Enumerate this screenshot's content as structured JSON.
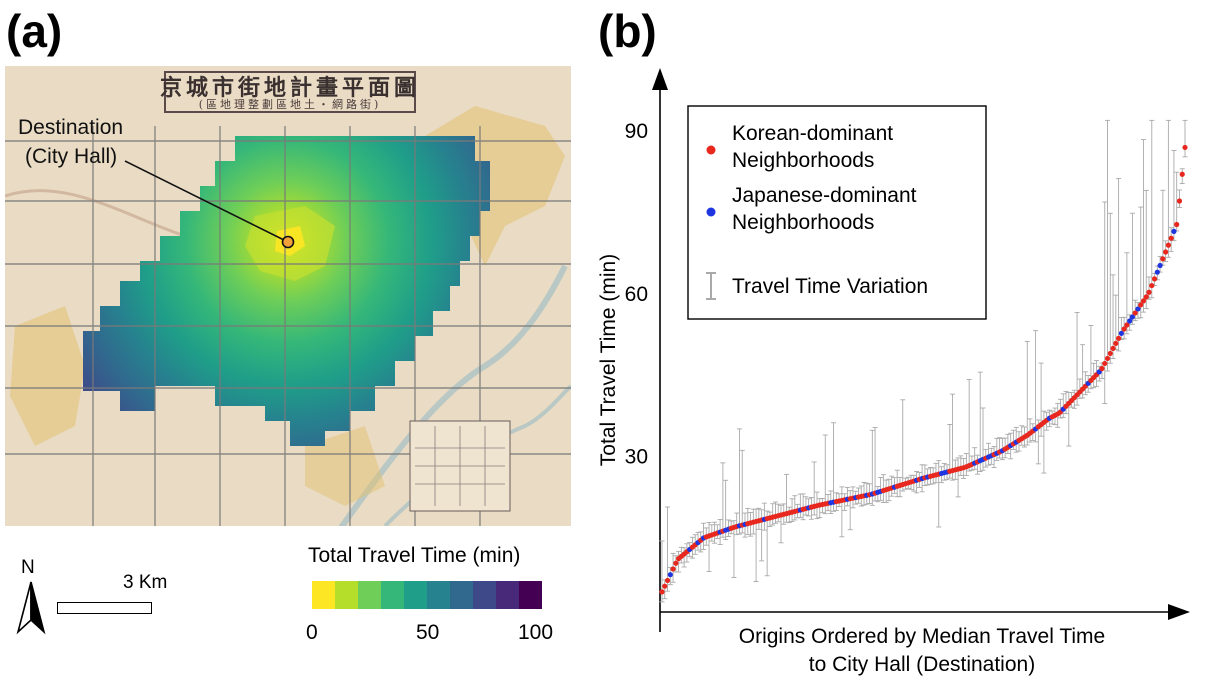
{
  "panel_a": {
    "label": "(a)",
    "map_title": "京城市街地計畫平面圖",
    "map_subtitle": "(區地理整劃區地土・網路街)",
    "destination_label_line1": "Destination",
    "destination_label_line2": "(City Hall)",
    "north_label": "N",
    "scale_label": "3 Km",
    "colorbar": {
      "title": "Total Travel Time (min)",
      "tick_min": "0",
      "tick_mid": "50",
      "tick_max": "100",
      "colors": [
        "#fde725",
        "#b5de2b",
        "#6ece58",
        "#35b779",
        "#1f9e89",
        "#26828e",
        "#31688e",
        "#3e4989",
        "#482878",
        "#440154"
      ]
    },
    "palette": {
      "paper": "#eadcc4",
      "heat_low": "#fde725",
      "heat_high": "#440154",
      "map_river": "#b9c8c4",
      "dest_marker": "#f2a03a"
    }
  },
  "panel_b": {
    "label": "(b)"
  },
  "chart_data": {
    "type": "scatter",
    "title": "",
    "xlabel_line1": "Origins Ordered by Median Travel Time",
    "xlabel_line2": "to City Hall (Destination)",
    "ylabel": "Total Travel Time (min)",
    "ylim": [
      0,
      98
    ],
    "yticks": [
      "30",
      "60",
      "90"
    ],
    "ytick_values": [
      30,
      60,
      90
    ],
    "x_ticks_shown": false,
    "legend": {
      "position": "top-left",
      "korean_line1": "Korean-dominant",
      "korean_line2": "Neighborhoods",
      "japanese_line1": "Japanese-dominant",
      "japanese_line2": "Neighborhoods",
      "variation": "Travel Time Variation"
    },
    "colors": {
      "korean": "#e8281e",
      "japanese": "#1f35e0",
      "variation": "#a9a9a9"
    },
    "curve_anchors": {
      "x_fraction": [
        0,
        0.03,
        0.08,
        0.14,
        0.22,
        0.3,
        0.4,
        0.5,
        0.58,
        0.65,
        0.7,
        0.74,
        0.76,
        0.79,
        0.84,
        0.88,
        0.93,
        0.96,
        0.985,
        1.0
      ],
      "median_min": [
        5,
        11,
        15,
        17,
        19,
        21,
        23,
        26,
        28,
        31,
        34,
        37,
        38,
        41,
        46,
        53,
        60,
        67,
        73,
        87
      ]
    },
    "series": [
      {
        "name": "Korean-dominant Neighborhoods",
        "share": 0.8
      },
      {
        "name": "Japanese-dominant Neighborhoods",
        "share": 0.2
      }
    ],
    "n_origins": 190
  }
}
